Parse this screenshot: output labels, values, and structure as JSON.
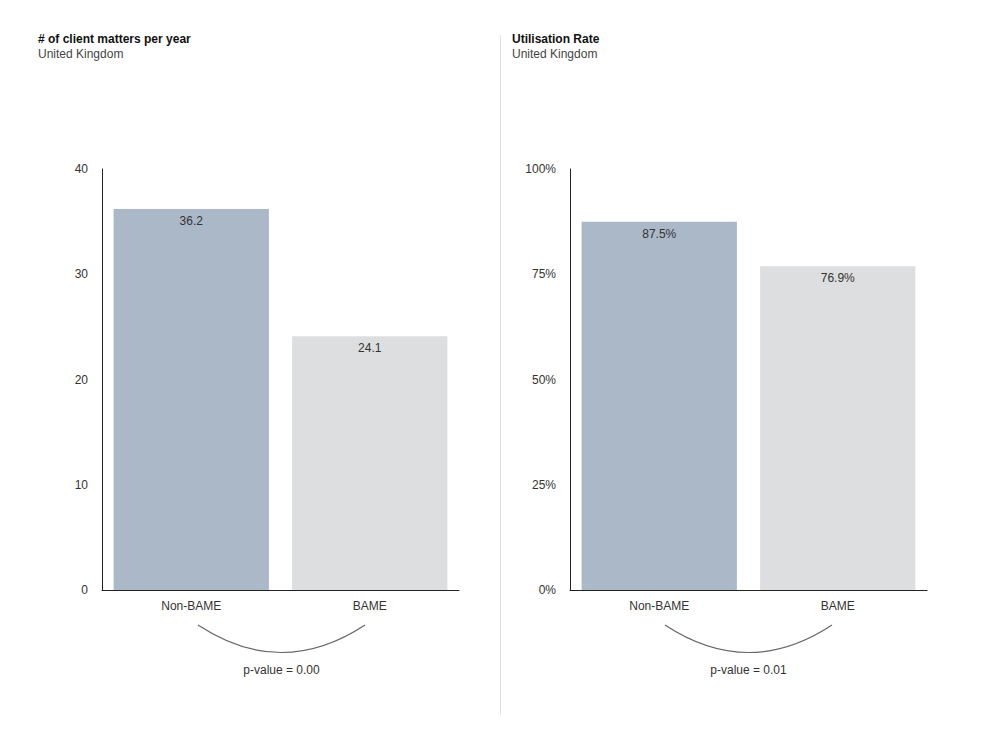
{
  "chart_data": [
    {
      "type": "bar",
      "title": "# of client matters per year",
      "subtitle": "United Kingdom",
      "categories": [
        "Non-BAME",
        "BAME"
      ],
      "values": [
        36.2,
        24.1
      ],
      "colors": [
        "#abb8c8",
        "#dcdee0"
      ],
      "ylim": [
        0,
        40
      ],
      "yticks": [
        0,
        10,
        20,
        30,
        40
      ],
      "grid": false,
      "data_labels": true,
      "annotations": [
        "p-value = 0.00"
      ]
    },
    {
      "type": "bar",
      "title": "Utilisation Rate",
      "subtitle": "United Kingdom",
      "categories": [
        "Non-BAME",
        "BAME"
      ],
      "values": [
        87.5,
        76.9
      ],
      "value_labels": [
        "87.5%",
        "76.9%"
      ],
      "colors": [
        "#abb8c8",
        "#dcdee0"
      ],
      "ylim": [
        0,
        100
      ],
      "yticks": [
        {
          "value": 0,
          "label": "0%"
        },
        {
          "value": 25,
          "label": "25%"
        },
        {
          "value": 50,
          "label": "50%"
        },
        {
          "value": 75,
          "label": "75%"
        },
        {
          "value": 100,
          "label": "100%"
        }
      ],
      "grid": false,
      "data_labels": true,
      "annotations": [
        "p-value = 0.01"
      ]
    }
  ]
}
